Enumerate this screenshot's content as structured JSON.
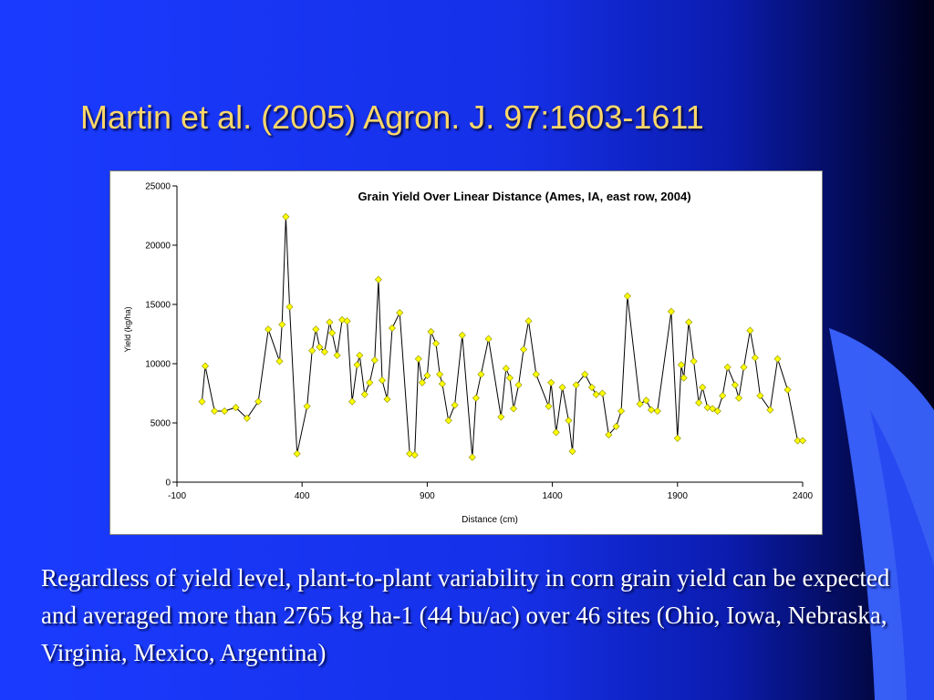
{
  "slide": {
    "title": "Martin et al. (2005) Agron. J. 97:1603-1611",
    "body": "Regardless of yield level, plant-to-plant variability in corn grain yield can be expected and averaged more than 2765 kg ha-1 (44 bu/ac) over 46 sites (Ohio, Iowa, Nebraska, Virginia, Mexico, Argentina)"
  },
  "colors": {
    "background": "#1a3bff",
    "title_text": "#ffd76a",
    "body_text": "#ffffff",
    "series_line": "#000000",
    "marker_fill": "#ffff00",
    "marker_stroke": "#8a8a00"
  },
  "chart_data": {
    "type": "line",
    "title": "Grain Yield Over Linear Distance (Ames, IA, east row, 2004)",
    "xlabel": "Distance (cm)",
    "ylabel": "Yield (kg/ha)",
    "xlim": [
      -100,
      2400
    ],
    "ylim": [
      0,
      25000
    ],
    "xticks": [
      -100,
      400,
      900,
      1400,
      1900,
      2400
    ],
    "yticks": [
      0,
      5000,
      10000,
      15000,
      20000,
      25000
    ],
    "grid": false,
    "legend": "none",
    "markers": "diamond",
    "series": [
      {
        "x": [
          0,
          13,
          50,
          90,
          135,
          180,
          225,
          265,
          310,
          320,
          335,
          350,
          380,
          420,
          440,
          455,
          470,
          490,
          510,
          520,
          540,
          560,
          580,
          600,
          620,
          630,
          650,
          670,
          690,
          705,
          720,
          740,
          760,
          790,
          830,
          850,
          865,
          880,
          900,
          915,
          935,
          950,
          960,
          985,
          1010,
          1040,
          1080,
          1095,
          1115,
          1145,
          1195,
          1215,
          1230,
          1245,
          1265,
          1285,
          1305,
          1335,
          1385,
          1395,
          1415,
          1440,
          1465,
          1480,
          1495,
          1530,
          1558,
          1575,
          1600,
          1625,
          1655,
          1675,
          1700,
          1750,
          1775,
          1795,
          1820,
          1875,
          1900,
          1915,
          1925,
          1945,
          1965,
          1985,
          2000,
          2020,
          2040,
          2060,
          2080,
          2100,
          2130,
          2145,
          2165,
          2190,
          2210,
          2230,
          2270,
          2300,
          2340,
          2380,
          2400
        ],
        "y": [
          6800,
          9800,
          6000,
          6000,
          6300,
          5400,
          6800,
          12900,
          10200,
          13300,
          22400,
          14800,
          2400,
          6400,
          11100,
          12900,
          11400,
          11000,
          13500,
          12600,
          10700,
          13700,
          13600,
          6800,
          9900,
          10700,
          7400,
          8400,
          10300,
          17100,
          8600,
          7000,
          13000,
          14300,
          2400,
          2300,
          10400,
          8400,
          9000,
          12700,
          11700,
          9100,
          8300,
          5200,
          6500,
          12400,
          2100,
          7100,
          9100,
          12100,
          5500,
          9600,
          8800,
          6200,
          8200,
          11200,
          13600,
          9100,
          6400,
          8400,
          4200,
          8000,
          5200,
          2600,
          8200,
          9100,
          8000,
          7400,
          7500,
          4000,
          4700,
          6000,
          15700,
          6600,
          6900,
          6100,
          6000,
          14400,
          3700,
          9900,
          8800,
          13500,
          10200,
          6700,
          8000,
          6300,
          6200,
          6000,
          7300,
          9700,
          8200,
          7100,
          9700,
          12800,
          10500,
          7300,
          6100,
          10400,
          7800,
          3500,
          3500
        ]
      }
    ]
  }
}
